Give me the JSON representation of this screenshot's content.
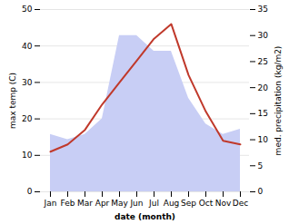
{
  "chart_data": {
    "type": "line",
    "xlabel": "date (month)",
    "ylabel": "max temp (C)",
    "y2label": "med. precipitation (kg/m2)",
    "categories": [
      "Jan",
      "Feb",
      "Mar",
      "Apr",
      "May",
      "Jun",
      "Jul",
      "Aug",
      "Sep",
      "Oct",
      "Nov",
      "Dec"
    ],
    "series": [
      {
        "type": "area",
        "axis": "y2",
        "color": "#c8cef5",
        "values": [
          11,
          10,
          11,
          14,
          30,
          30,
          27,
          27,
          18,
          13,
          11,
          12
        ]
      },
      {
        "type": "line",
        "color": "#c0392b",
        "values": [
          11,
          13,
          17,
          24,
          30,
          36,
          42,
          46,
          32,
          22,
          14,
          13
        ]
      }
    ],
    "ylim": [
      0,
      50
    ],
    "yticks": [
      0,
      10,
      20,
      30,
      40,
      50
    ],
    "y2lim": [
      0,
      35
    ],
    "y2ticks": [
      0,
      5,
      10,
      15,
      20,
      25,
      30,
      35
    ],
    "grid": true
  }
}
